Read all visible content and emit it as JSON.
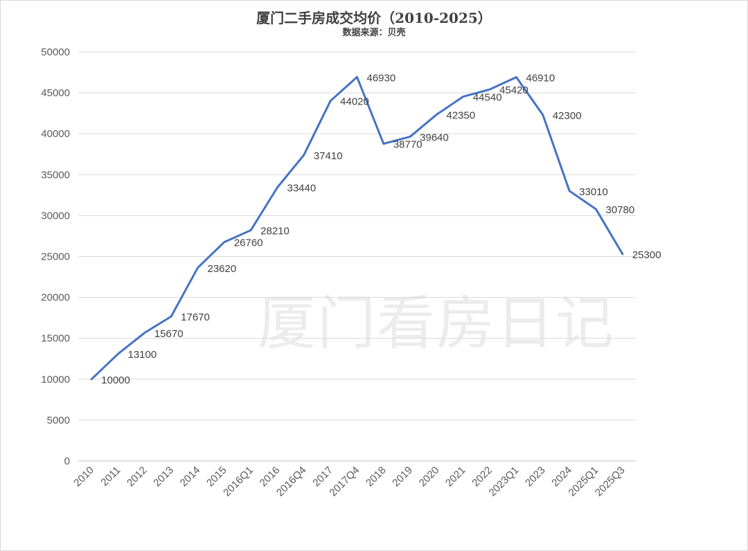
{
  "chart_data": {
    "type": "line",
    "title": "厦门二手房成交均价（2010-2025）",
    "subtitle": "数据来源：贝壳",
    "watermark": "厦门看房日记",
    "categories": [
      "2010",
      "2011",
      "2012",
      "2013",
      "2014",
      "2015",
      "2016Q1",
      "2016",
      "2016Q4",
      "2017",
      "2017Q4",
      "2018",
      "2019",
      "2020",
      "2021",
      "2022",
      "2023Q1",
      "2023",
      "2024",
      "2025Q1",
      "2025Q3"
    ],
    "series": [
      {
        "values": [
          10000,
          13100,
          15670,
          17670,
          23620,
          26760,
          28210,
          33440,
          37410,
          44020,
          46930,
          38770,
          39640,
          42350,
          44540,
          45420,
          46910,
          42300,
          33010,
          30780,
          25300
        ]
      }
    ],
    "ylim": [
      0,
      50000
    ],
    "yticks": [
      0,
      5000,
      10000,
      15000,
      20000,
      25000,
      30000,
      35000,
      40000,
      45000,
      50000
    ],
    "grid": true,
    "line_color": "#4472C4"
  }
}
